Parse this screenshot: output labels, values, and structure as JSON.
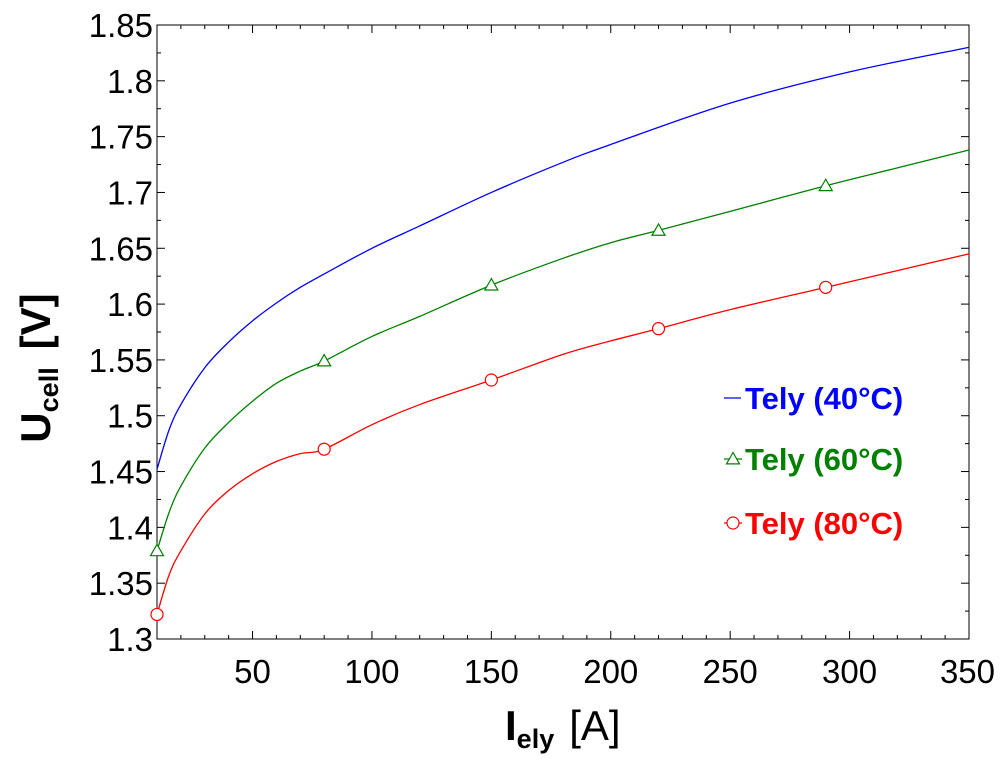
{
  "chart_data": {
    "type": "line",
    "title": "",
    "xlabel": {
      "main": "I",
      "sub": "ely",
      "unit": "[A]"
    },
    "ylabel": {
      "main": "U",
      "sub": "cell",
      "unit": "[V]"
    },
    "xlim": [
      10,
      350
    ],
    "ylim": [
      1.3,
      1.85
    ],
    "x_ticks": [
      50,
      100,
      150,
      200,
      250,
      300,
      350
    ],
    "x_tick_labels": [
      "50",
      "100",
      "150",
      "200",
      "250",
      "300",
      "350"
    ],
    "y_ticks": [
      1.3,
      1.35,
      1.4,
      1.45,
      1.5,
      1.55,
      1.6,
      1.65,
      1.7,
      1.75,
      1.8,
      1.85
    ],
    "y_tick_labels": [
      "1.3",
      "1.35",
      "1.4",
      "1.45",
      "1.5",
      "1.55",
      "1.6",
      "1.65",
      "1.7",
      "1.75",
      "1.8",
      "1.85"
    ],
    "grid": false,
    "legend_position": "right-center",
    "series": [
      {
        "name": "Tely (40°C)",
        "color": "#0000ff",
        "marker": "none",
        "x": [
          10,
          15,
          20,
          30,
          40,
          50,
          60,
          70,
          80,
          100,
          120,
          150,
          180,
          200,
          250,
          300,
          350
        ],
        "y": [
          1.452,
          1.487,
          1.51,
          1.543,
          1.566,
          1.585,
          1.601,
          1.615,
          1.627,
          1.65,
          1.67,
          1.7,
          1.727,
          1.743,
          1.78,
          1.808,
          1.83
        ],
        "markers_x": [],
        "markers_y": []
      },
      {
        "name": "Tely (60°C)",
        "color": "#008000",
        "marker": "triangle",
        "x": [
          10,
          15,
          20,
          30,
          40,
          50,
          60,
          70,
          80,
          100,
          120,
          150,
          180,
          200,
          220,
          250,
          290,
          320,
          350
        ],
        "y": [
          1.379,
          1.413,
          1.437,
          1.471,
          1.494,
          1.513,
          1.529,
          1.54,
          1.549,
          1.571,
          1.589,
          1.617,
          1.641,
          1.655,
          1.666,
          1.683,
          1.706,
          1.722,
          1.738
        ],
        "markers_x": [
          10,
          80,
          150,
          220,
          290
        ],
        "markers_y": [
          1.379,
          1.549,
          1.617,
          1.666,
          1.706
        ]
      },
      {
        "name": "Tely (80°C)",
        "color": "#ff0000",
        "marker": "circle",
        "x": [
          10,
          15,
          20,
          30,
          40,
          50,
          60,
          70,
          80,
          100,
          120,
          150,
          180,
          200,
          220,
          250,
          290,
          320,
          350
        ],
        "y": [
          1.322,
          1.357,
          1.379,
          1.412,
          1.433,
          1.448,
          1.459,
          1.466,
          1.47,
          1.492,
          1.51,
          1.532,
          1.555,
          1.567,
          1.578,
          1.595,
          1.615,
          1.63,
          1.645
        ],
        "markers_x": [
          10,
          80,
          150,
          220,
          290
        ],
        "markers_y": [
          1.322,
          1.47,
          1.532,
          1.578,
          1.615
        ]
      }
    ]
  }
}
